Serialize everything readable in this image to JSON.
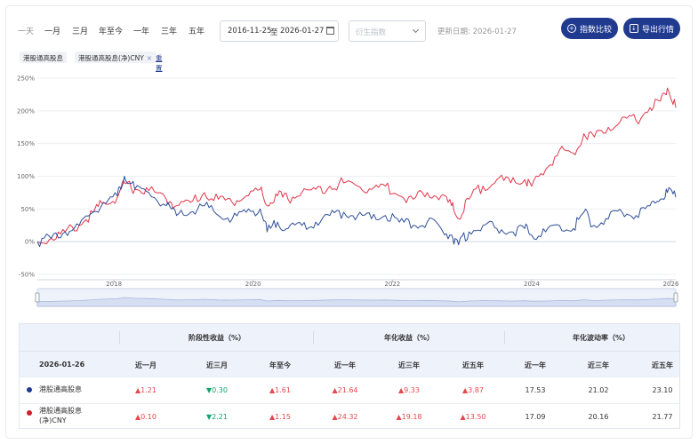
{
  "toolbar": {
    "ranges": [
      "一天",
      "一月",
      "三月",
      "年至今",
      "一年",
      "三年",
      "五年"
    ],
    "selected_range": "一天",
    "date_start": "2016-11-25",
    "date_sep": "至",
    "date_end": "2026-01-27",
    "derived_index_placeholder": "衍生指数",
    "updated_label": "更新日期: 2026-01-27",
    "compare_button": "指数比较",
    "export_button": "导出行情"
  },
  "legend": {
    "series1": "港股通高股息",
    "series2": "港股通高股息(净)CNY",
    "reset": "重置"
  },
  "colors": {
    "series1": "#2f4f9a",
    "series2": "#e0374a",
    "button": "#1f3a8f"
  },
  "chart_data": {
    "type": "line",
    "y_ticks": [
      "250%",
      "200%",
      "150%",
      "100%",
      "50%",
      "0%",
      "-50%"
    ],
    "x_ticks": [
      "2018",
      "2020",
      "2022",
      "2024",
      "2026"
    ],
    "ylim": [
      -50,
      250
    ],
    "xlim": [
      2016.9,
      2026.07
    ],
    "grid": true,
    "series": [
      {
        "name": "港股通高股息",
        "color": "#2f4f9a",
        "x": [
          2016.9,
          2017.1,
          2017.3,
          2017.5,
          2017.7,
          2017.85,
          2018.05,
          2018.15,
          2018.3,
          2018.5,
          2018.75,
          2018.9,
          2019.1,
          2019.3,
          2019.5,
          2019.7,
          2019.9,
          2020.1,
          2020.2,
          2020.35,
          2020.5,
          2020.7,
          2020.9,
          2021.1,
          2021.3,
          2021.5,
          2021.7,
          2021.9,
          2022.1,
          2022.3,
          2022.5,
          2022.7,
          2022.85,
          2022.95,
          2023.1,
          2023.3,
          2023.5,
          2023.7,
          2023.9,
          2024.0,
          2024.2,
          2024.4,
          2024.6,
          2024.75,
          2024.9,
          2025.1,
          2025.3,
          2025.5,
          2025.7,
          2025.85,
          2025.95,
          2026.07
        ],
        "values": [
          0,
          5,
          15,
          25,
          45,
          60,
          70,
          100,
          80,
          75,
          55,
          40,
          45,
          55,
          40,
          35,
          45,
          50,
          15,
          30,
          20,
          25,
          30,
          40,
          45,
          40,
          35,
          40,
          30,
          25,
          30,
          20,
          10,
          -5,
          15,
          25,
          20,
          15,
          20,
          10,
          15,
          25,
          20,
          45,
          25,
          35,
          45,
          40,
          55,
          65,
          75,
          68
        ]
      },
      {
        "name": "港股通高股息(净)CNY",
        "color": "#e0374a",
        "x": [
          2016.9,
          2017.1,
          2017.3,
          2017.5,
          2017.7,
          2017.85,
          2018.05,
          2018.15,
          2018.3,
          2018.5,
          2018.75,
          2018.9,
          2019.1,
          2019.3,
          2019.5,
          2019.7,
          2019.9,
          2020.1,
          2020.2,
          2020.35,
          2020.5,
          2020.7,
          2020.9,
          2021.1,
          2021.3,
          2021.5,
          2021.7,
          2021.9,
          2022.1,
          2022.3,
          2022.5,
          2022.7,
          2022.85,
          2022.95,
          2023.1,
          2023.3,
          2023.5,
          2023.7,
          2023.9,
          2024.0,
          2024.2,
          2024.4,
          2024.6,
          2024.75,
          2024.9,
          2025.1,
          2025.3,
          2025.5,
          2025.7,
          2025.85,
          2025.95,
          2026.07
        ],
        "values": [
          0,
          5,
          15,
          25,
          45,
          60,
          68,
          90,
          80,
          78,
          65,
          55,
          60,
          75,
          65,
          60,
          70,
          80,
          55,
          70,
          65,
          75,
          80,
          85,
          90,
          85,
          80,
          85,
          70,
          65,
          75,
          70,
          55,
          35,
          65,
          85,
          95,
          90,
          95,
          85,
          110,
          140,
          135,
          165,
          160,
          175,
          190,
          185,
          205,
          215,
          235,
          205
        ]
      }
    ]
  },
  "table": {
    "group_headers": [
      "阶段性收益（%）",
      "年化收益（%）",
      "年化波动率（%）"
    ],
    "date_label": "2026-01-26",
    "columns": [
      "近一月",
      "近三月",
      "年至今",
      "近一年",
      "近三年",
      "近五年",
      "近一年",
      "近三年",
      "近五年"
    ],
    "rows": [
      {
        "name": "港股通高股息",
        "dot_color": "#1f3a8f",
        "cells": [
          {
            "text": "▲1.21",
            "dir": "up"
          },
          {
            "text": "▼0.30",
            "dir": "dn"
          },
          {
            "text": "▲1.61",
            "dir": "up"
          },
          {
            "text": "▲21.64",
            "dir": "up"
          },
          {
            "text": "▲9.33",
            "dir": "up"
          },
          {
            "text": "▲3.87",
            "dir": "up"
          },
          {
            "text": "17.53",
            "dir": ""
          },
          {
            "text": "21.02",
            "dir": ""
          },
          {
            "text": "23.10",
            "dir": ""
          }
        ]
      },
      {
        "name": "港股通高股息(净)CNY",
        "dot_color": "#d0202e",
        "cells": [
          {
            "text": "▲0.10",
            "dir": "up"
          },
          {
            "text": "▼2.21",
            "dir": "dn"
          },
          {
            "text": "▲1.15",
            "dir": "up"
          },
          {
            "text": "▲24.32",
            "dir": "up"
          },
          {
            "text": "▲19.18",
            "dir": "up"
          },
          {
            "text": "▲13.50",
            "dir": "up"
          },
          {
            "text": "17.09",
            "dir": ""
          },
          {
            "text": "20.16",
            "dir": ""
          },
          {
            "text": "21.77",
            "dir": ""
          }
        ]
      }
    ]
  }
}
